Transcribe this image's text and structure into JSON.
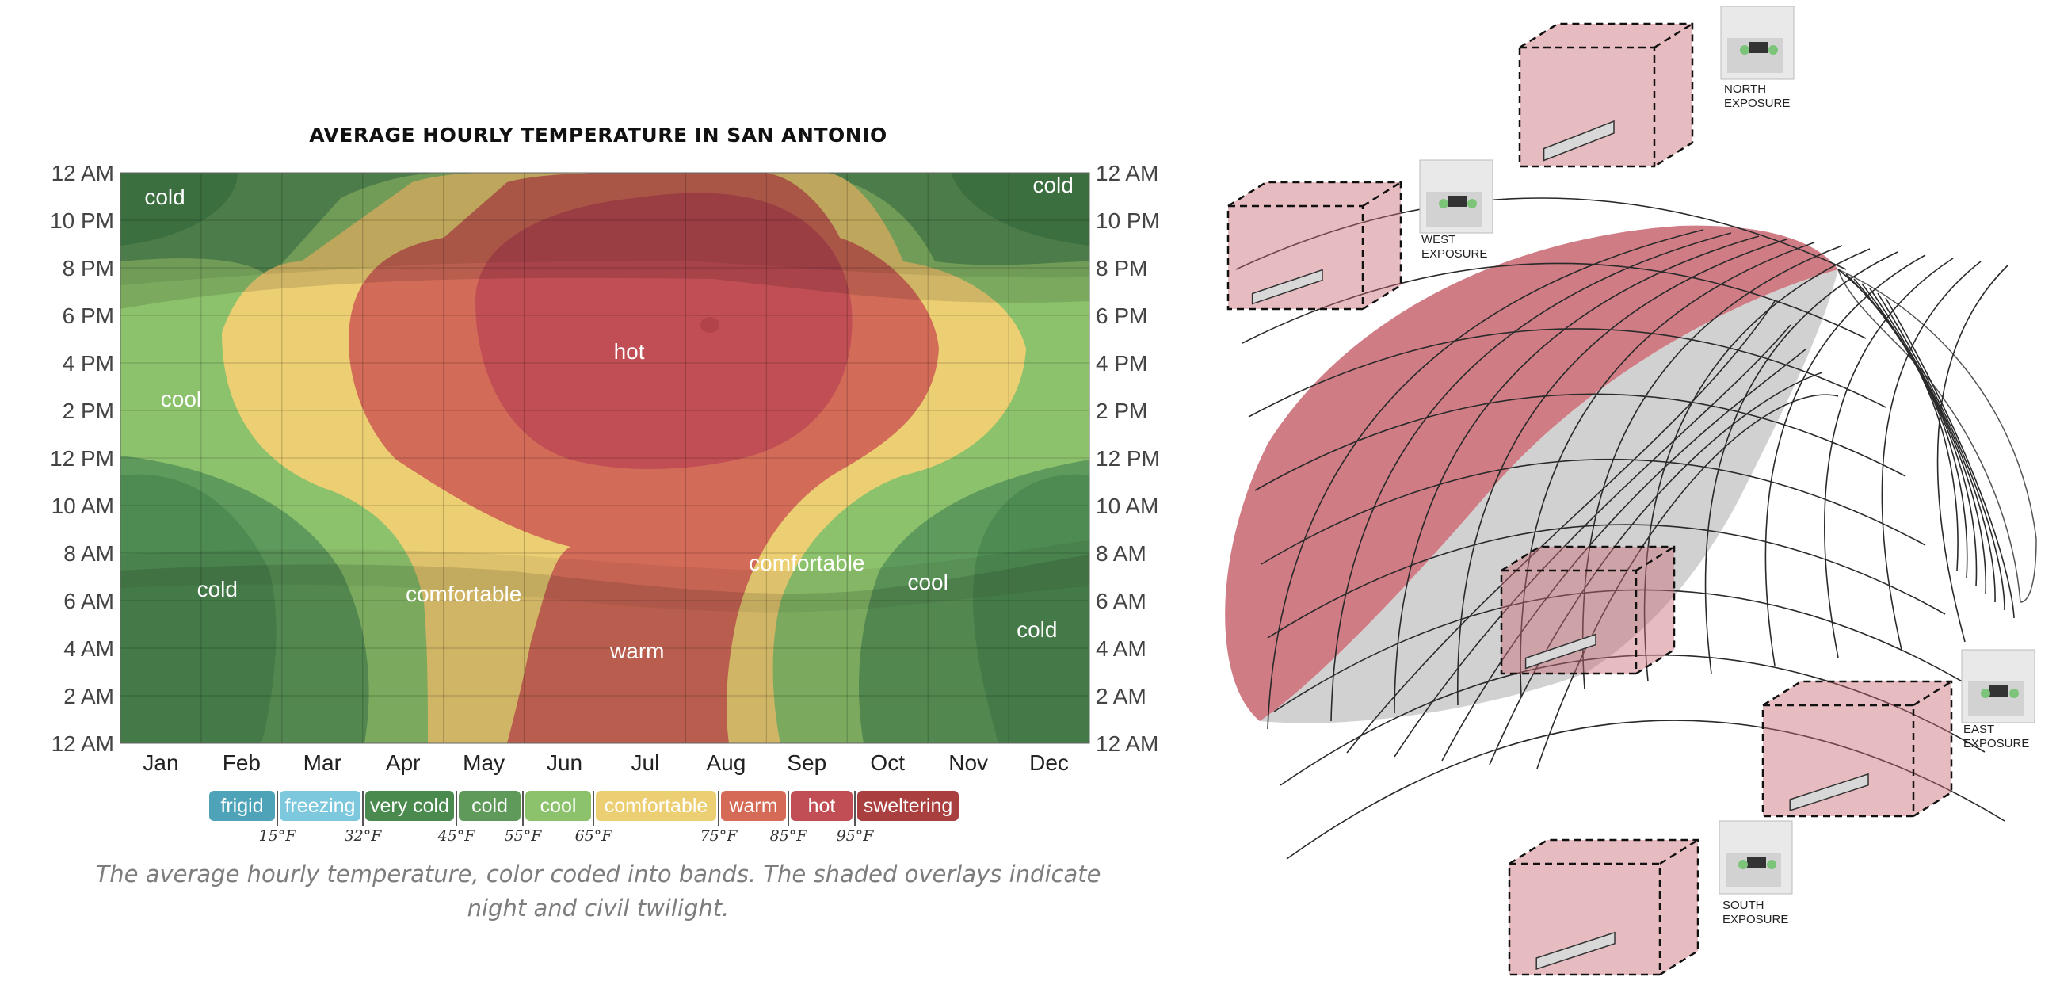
{
  "chart_data": {
    "type": "heatmap",
    "title": "AVERAGE HOURLY TEMPERATURE IN SAN ANTONIO",
    "x_categories": [
      "Jan",
      "Feb",
      "Mar",
      "Apr",
      "May",
      "Jun",
      "Jul",
      "Aug",
      "Sep",
      "Oct",
      "Nov",
      "Dec"
    ],
    "y_tick_labels": [
      "12 AM",
      "10 PM",
      "8 PM",
      "6 PM",
      "4 PM",
      "2 PM",
      "12 PM",
      "10 AM",
      "8 AM",
      "6 AM",
      "4 AM",
      "2 AM",
      "12 AM"
    ],
    "y_range_hours": [
      0,
      24
    ],
    "bands": [
      {
        "name": "frigid",
        "color": "#4fa3b8",
        "threshold_upper": "15°F"
      },
      {
        "name": "freezing",
        "color": "#7ec8dd",
        "threshold_upper": "32°F"
      },
      {
        "name": "very cold",
        "color": "#4b8a4f",
        "threshold_upper": "45°F"
      },
      {
        "name": "cold",
        "color": "#5f9a5a",
        "threshold_upper": "55°F"
      },
      {
        "name": "cool",
        "color": "#8dc26d",
        "threshold_upper": "65°F"
      },
      {
        "name": "comfortable",
        "color": "#ecce73",
        "threshold_upper": "75°F"
      },
      {
        "name": "warm",
        "color": "#d56a57",
        "threshold_upper": "85°F"
      },
      {
        "name": "hot",
        "color": "#c04e54",
        "threshold_upper": "95°F"
      },
      {
        "name": "sweltering",
        "color": "#a9403f",
        "threshold_upper": ""
      }
    ],
    "region_labels": [
      {
        "text": "cold",
        "month": 0.55,
        "hour": 23.0
      },
      {
        "text": "cold",
        "month": 11.55,
        "hour": 23.5
      },
      {
        "text": "cool",
        "month": 0.75,
        "hour": 14.5
      },
      {
        "text": "cold",
        "month": 1.2,
        "hour": 6.5
      },
      {
        "text": "comfortable",
        "month": 4.25,
        "hour": 6.3
      },
      {
        "text": "comfortable",
        "month": 8.5,
        "hour": 7.6
      },
      {
        "text": "cool",
        "month": 10.0,
        "hour": 6.8
      },
      {
        "text": "cold",
        "month": 11.35,
        "hour": 4.8
      },
      {
        "text": "hot",
        "month": 6.3,
        "hour": 16.5
      },
      {
        "text": "warm",
        "month": 6.4,
        "hour": 3.9
      }
    ],
    "overlays": "night and civil twilight shading",
    "grid": true,
    "legend_placement": "bottom"
  },
  "caption": "The average hourly temperature, color coded into bands. The shaded overlays indicate night and civil twilight.",
  "figure": {
    "exposures": [
      {
        "line1": "NORTH",
        "line2": "EXPOSURE"
      },
      {
        "line1": "WEST",
        "line2": "EXPOSURE"
      },
      {
        "line1": "EAST",
        "line2": "EXPOSURE"
      },
      {
        "line1": "SOUTH",
        "line2": "EXPOSURE"
      }
    ],
    "accent_color": "#c96a74"
  }
}
